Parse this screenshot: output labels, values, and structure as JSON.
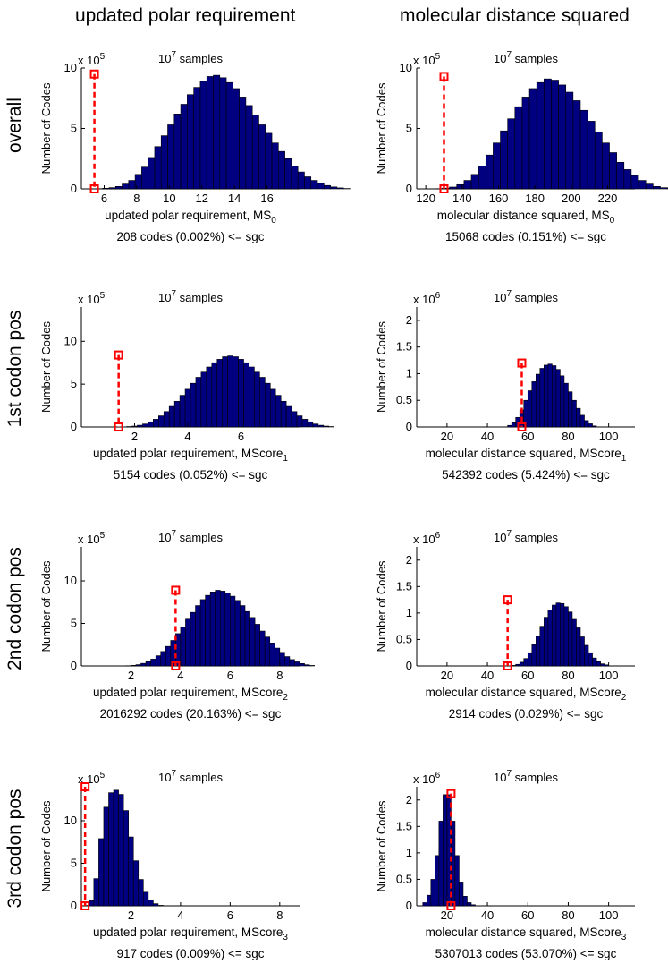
{
  "columns": [
    "updated polar requirement",
    "molecular distance squared"
  ],
  "rows": [
    "overall",
    "1st codon pos",
    "2nd codon pos",
    "3rd codon pos"
  ],
  "colors": {
    "bar_fill": "#000080",
    "bar_edge": "#000000",
    "marker": "#ff0000"
  },
  "chart_data": [
    {
      "type": "bar",
      "panel": "r0c0",
      "title": "10",
      "title_exp": "7",
      "title_rest": " samples",
      "xlabel": "updated polar requirement, MS",
      "xlabel_sub": "0",
      "ylabel": "Number of Codes",
      "scale_label": "x 10",
      "scale_exp": "5",
      "scale": 100000,
      "summary": "208 codes (0.002%) <= sgc",
      "xlim": [
        4.6,
        18
      ],
      "ylim": [
        0,
        10
      ],
      "xticks": [
        6,
        8,
        10,
        12,
        14,
        16
      ],
      "yticks": [
        0,
        5,
        10
      ],
      "bin_start": 5.5,
      "bin_width": 0.4,
      "values": [
        0.02,
        0.05,
        0.1,
        0.2,
        0.4,
        0.7,
        1.2,
        1.8,
        2.6,
        3.5,
        4.4,
        5.3,
        6.2,
        7.0,
        7.8,
        8.4,
        8.9,
        9.3,
        9.4,
        9.2,
        8.8,
        8.3,
        7.6,
        6.9,
        6.1,
        5.3,
        4.6,
        3.8,
        3.1,
        2.5,
        1.9,
        1.4,
        1.0,
        0.7,
        0.45,
        0.28,
        0.16,
        0.08,
        0.03
      ],
      "marker_x": 5.4,
      "marker_y": 9.5
    },
    {
      "type": "bar",
      "panel": "r0c1",
      "title": "10",
      "title_exp": "7",
      "title_rest": " samples",
      "xlabel": "molecular distance squared, MS",
      "xlabel_sub": "0",
      "ylabel": "Number of Codes",
      "scale_label": "x 10",
      "scale_exp": "5",
      "scale": 100000,
      "summary": "15068 codes (0.151%) <= sgc",
      "xlim": [
        115,
        235
      ],
      "ylim": [
        0,
        10
      ],
      "xticks": [
        120,
        140,
        160,
        180,
        200,
        220
      ],
      "yticks": [
        0,
        5,
        10
      ],
      "bin_start": 125,
      "bin_width": 4,
      "values": [
        0.02,
        0.06,
        0.15,
        0.35,
        0.7,
        1.2,
        1.9,
        2.8,
        3.8,
        4.8,
        5.8,
        6.8,
        7.6,
        8.3,
        8.8,
        9.1,
        9.0,
        8.6,
        8.0,
        7.3,
        6.5,
        5.6,
        4.7,
        3.8,
        3.0,
        2.2,
        1.6,
        1.1,
        0.7,
        0.4,
        0.2,
        0.1,
        0.05,
        0.02
      ],
      "marker_x": 130,
      "marker_y": 9.3
    },
    {
      "type": "bar",
      "panel": "r1c0",
      "title": "10",
      "title_exp": "7",
      "title_rest": " samples",
      "xlabel": "updated polar requirement, MScore",
      "xlabel_sub": "1",
      "ylabel": "Number of Codes",
      "scale_label": "x 10",
      "scale_exp": "5",
      "scale": 100000,
      "summary": "5154 codes (0.052%) <= sgc",
      "xlim": [
        0,
        8.2
      ],
      "ylim": [
        0,
        14
      ],
      "xticks": [
        2,
        4,
        6
      ],
      "yticks": [
        0,
        5,
        10
      ],
      "bin_start": 1.5,
      "bin_width": 0.2,
      "values": [
        0.02,
        0.05,
        0.1,
        0.2,
        0.35,
        0.6,
        0.9,
        1.3,
        1.8,
        2.4,
        3.0,
        3.7,
        4.4,
        5.1,
        5.8,
        6.4,
        7.0,
        7.5,
        7.9,
        8.2,
        8.3,
        8.2,
        7.9,
        7.5,
        7.0,
        6.4,
        5.8,
        5.1,
        4.4,
        3.7,
        3.0,
        2.4,
        1.8,
        1.3,
        0.9,
        0.6,
        0.35,
        0.2,
        0.1,
        0.05
      ],
      "marker_x": 1.4,
      "marker_y": 8.4
    },
    {
      "type": "bar",
      "panel": "r1c1",
      "title": "10",
      "title_exp": "7",
      "title_rest": " samples",
      "xlabel": "molecular distance squared, MScore",
      "xlabel_sub": "1",
      "ylabel": "Number of Codes",
      "scale_label": "x 10",
      "scale_exp": "6",
      "scale": 1000000,
      "summary": "542392 codes (5.424%) <= sgc",
      "xlim": [
        5,
        113
      ],
      "ylim": [
        0,
        2.25
      ],
      "xticks": [
        20,
        40,
        60,
        80,
        100
      ],
      "yticks": [
        0,
        0.5,
        1,
        1.5,
        2
      ],
      "bin_start": 50,
      "bin_width": 2,
      "values": [
        0.03,
        0.08,
        0.18,
        0.32,
        0.5,
        0.68,
        0.85,
        0.99,
        1.1,
        1.16,
        1.18,
        1.15,
        1.08,
        0.96,
        0.82,
        0.66,
        0.5,
        0.35,
        0.22,
        0.12,
        0.06,
        0.02
      ],
      "marker_x": 57,
      "marker_y": 1.2
    },
    {
      "type": "bar",
      "panel": "r2c0",
      "title": "10",
      "title_exp": "7",
      "title_rest": " samples",
      "xlabel": "updated polar requirement, MScore",
      "xlabel_sub": "2",
      "ylabel": "Number of Codes",
      "scale_label": "x 10",
      "scale_exp": "5",
      "scale": 100000,
      "summary": "2016292 codes (20.163%) <= sgc",
      "xlim": [
        0,
        8.8
      ],
      "ylim": [
        0,
        14
      ],
      "xticks": [
        2,
        4,
        6,
        8
      ],
      "yticks": [
        0,
        5,
        10
      ],
      "bin_start": 1.8,
      "bin_width": 0.2,
      "values": [
        0.03,
        0.07,
        0.15,
        0.3,
        0.5,
        0.8,
        1.2,
        1.7,
        2.3,
        3.0,
        3.8,
        4.6,
        5.5,
        6.3,
        7.1,
        7.8,
        8.3,
        8.7,
        8.9,
        8.8,
        8.6,
        8.2,
        7.7,
        7.1,
        6.4,
        5.7,
        4.9,
        4.1,
        3.4,
        2.7,
        2.1,
        1.6,
        1.1,
        0.75,
        0.48,
        0.28,
        0.14,
        0.06
      ],
      "marker_x": 3.8,
      "marker_y": 8.9
    },
    {
      "type": "bar",
      "panel": "r2c1",
      "title": "10",
      "title_exp": "7",
      "title_rest": " samples",
      "xlabel": "molecular distance squared, MScore",
      "xlabel_sub": "2",
      "ylabel": "Number of Codes",
      "scale_label": "x 10",
      "scale_exp": "6",
      "scale": 1000000,
      "summary": "2914 codes (0.029%) <= sgc",
      "xlim": [
        5,
        113
      ],
      "ylim": [
        0,
        2.25
      ],
      "xticks": [
        20,
        40,
        60,
        80,
        100
      ],
      "yticks": [
        0,
        0.5,
        1,
        1.5,
        2
      ],
      "bin_start": 52,
      "bin_width": 2,
      "values": [
        0.01,
        0.03,
        0.07,
        0.14,
        0.25,
        0.4,
        0.57,
        0.75,
        0.92,
        1.06,
        1.15,
        1.19,
        1.18,
        1.12,
        1.02,
        0.88,
        0.72,
        0.55,
        0.39,
        0.25,
        0.15,
        0.08,
        0.04,
        0.02
      ],
      "marker_x": 50,
      "marker_y": 1.25
    },
    {
      "type": "bar",
      "panel": "r3c0",
      "title": "10",
      "title_exp": "7",
      "title_rest": " samples",
      "xlabel": "updated polar requirement, MScore",
      "xlabel_sub": "3",
      "ylabel": "Number of Codes",
      "scale_label": "x 10",
      "scale_exp": "5",
      "scale": 100000,
      "summary": "917 codes (0.009%) <= sgc",
      "xlim": [
        0,
        8.8
      ],
      "ylim": [
        0,
        14
      ],
      "xticks": [
        2,
        4,
        6,
        8
      ],
      "yticks": [
        0,
        5,
        10
      ],
      "bin_start": 0.1,
      "bin_width": 0.2,
      "values": [
        0.05,
        0.6,
        3.2,
        7.9,
        11.6,
        13.3,
        13.6,
        13.1,
        11.2,
        8.1,
        5.3,
        3.1,
        1.6,
        0.7,
        0.25,
        0.06
      ],
      "marker_x": 0.15,
      "marker_y": 14
    },
    {
      "type": "bar",
      "panel": "r3c1",
      "title": "10",
      "title_exp": "7",
      "title_rest": " samples",
      "xlabel": "molecular distance squared, MScore",
      "xlabel_sub": "3",
      "ylabel": "Number of Codes",
      "scale_label": "x 10",
      "scale_exp": "6",
      "scale": 1000000,
      "summary": "5307013 codes (53.070%) <= sgc",
      "xlim": [
        5,
        113
      ],
      "ylim": [
        0,
        2.25
      ],
      "xticks": [
        20,
        40,
        60,
        80,
        100
      ],
      "yticks": [
        0,
        0.5,
        1,
        1.5,
        2
      ],
      "bin_start": 8,
      "bin_width": 2,
      "values": [
        0.06,
        0.2,
        0.5,
        0.95,
        1.6,
        2.1,
        2.1,
        1.6,
        0.95,
        0.45,
        0.18,
        0.06,
        0.02
      ],
      "marker_x": 22,
      "marker_y": 2.12
    }
  ]
}
